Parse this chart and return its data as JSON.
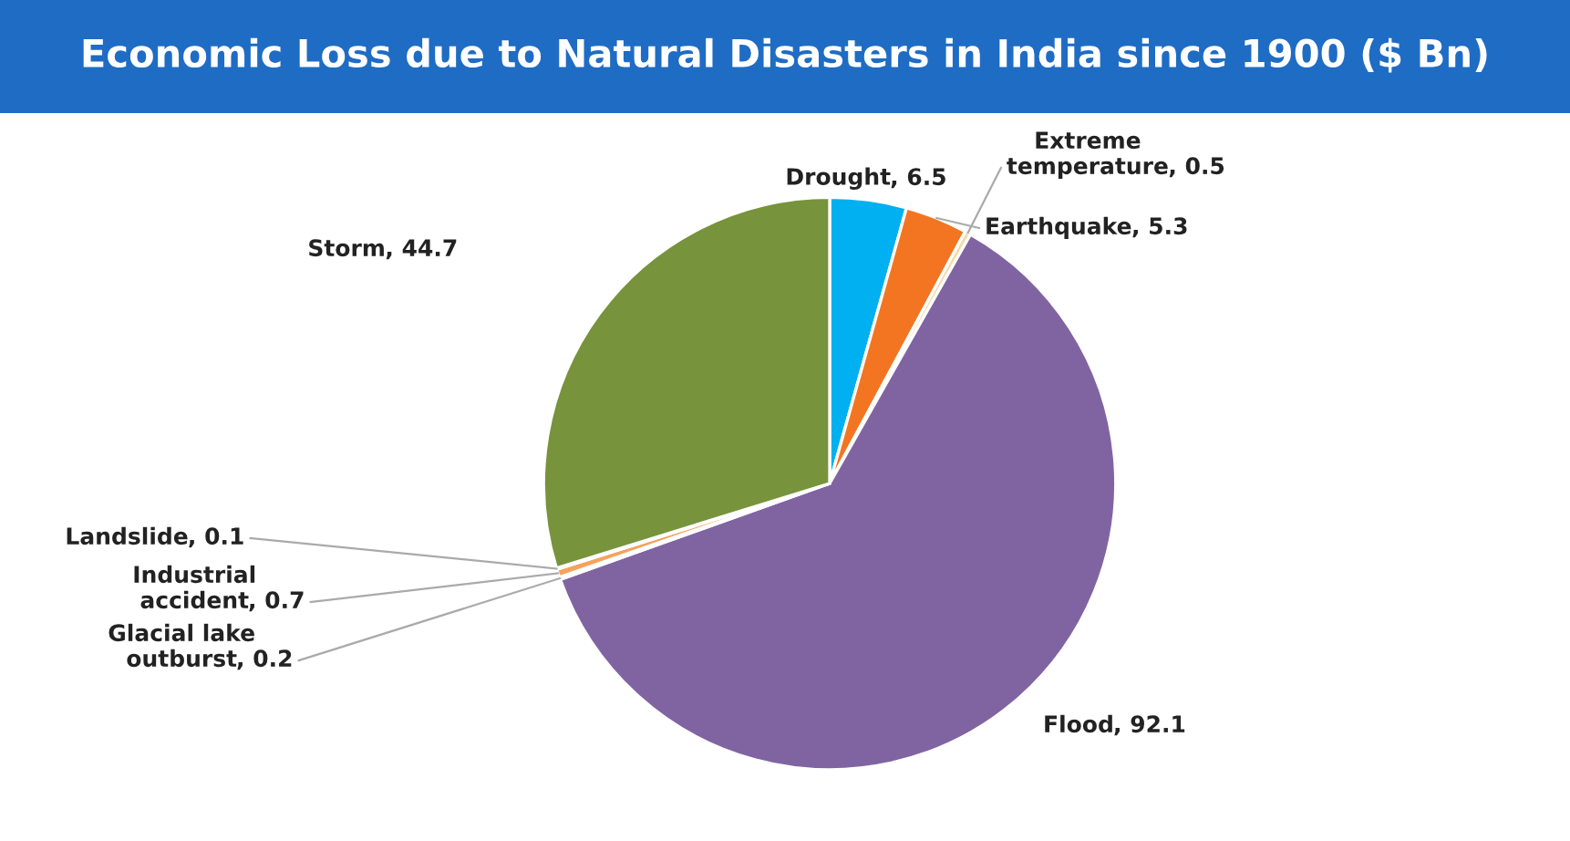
{
  "chart_data": {
    "type": "pie",
    "title": "Economic Loss due to Natural Disasters in India since 1900 ($ Bn)",
    "categories": [
      "Drought",
      "Earthquake",
      "Extreme temperature",
      "Flood",
      "Glacial lake outburst",
      "Industrial accident",
      "Landslide",
      "Storm"
    ],
    "values": [
      6.5,
      5.3,
      0.5,
      92.1,
      0.2,
      0.7,
      0.1,
      44.7
    ],
    "value_labels": [
      ", 6.5",
      ", 5.3",
      ", 0.5",
      ", 92.1",
      ", 0.2",
      ", 0.7",
      ", 0.1",
      ", 44.7"
    ],
    "colors": [
      "#00b0f0",
      "#f47521",
      "#f5d9a8",
      "#8064a2",
      "#dde4f0",
      "#f6a25e",
      "#c8c8c8",
      "#77933c"
    ],
    "legend": false
  }
}
